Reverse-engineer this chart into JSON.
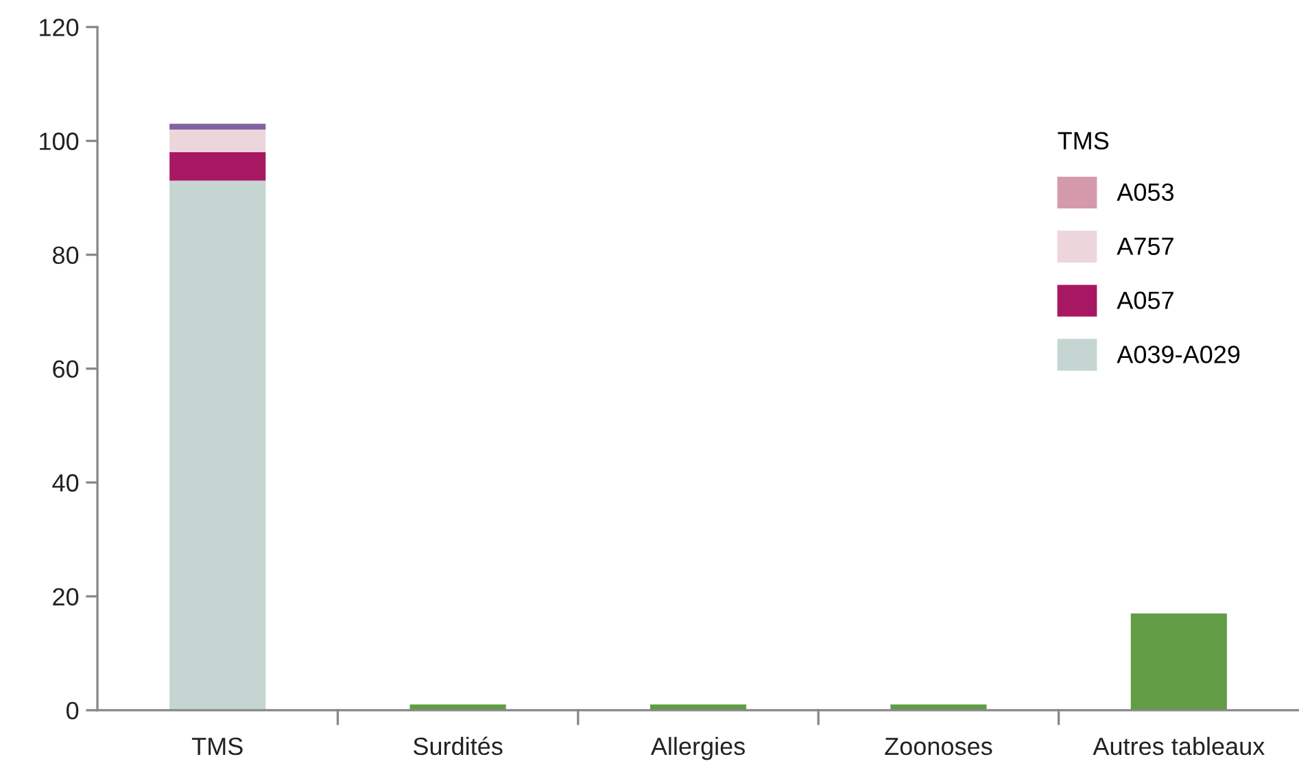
{
  "chart_data": {
    "type": "bar",
    "stacked": true,
    "categories": [
      "TMS",
      "Surdités",
      "Allergies",
      "Zoonoses",
      "Autres tableaux"
    ],
    "series": [
      {
        "name": "A039-A029",
        "color": "#c5d6d2",
        "values": [
          93,
          null,
          null,
          null,
          null
        ]
      },
      {
        "name": "A057",
        "color": "#a81862",
        "values": [
          5,
          null,
          null,
          null,
          null
        ]
      },
      {
        "name": "A757",
        "color": "#ecd6dc",
        "values": [
          4,
          null,
          null,
          null,
          null
        ]
      },
      {
        "color": "#8066a0",
        "values": [
          1,
          null,
          null,
          null,
          null
        ]
      },
      {
        "name": "A053",
        "color": "#d49aac",
        "values": [
          null,
          null,
          null,
          null,
          null
        ]
      },
      {
        "color": "#629c44",
        "values": [
          null,
          1,
          1,
          1,
          17
        ]
      }
    ],
    "legend_title": "TMS",
    "legend": "top right",
    "grid": false,
    "ylim": [
      0,
      120
    ],
    "yticks": [
      0,
      20,
      40,
      60,
      80,
      100,
      120
    ]
  }
}
